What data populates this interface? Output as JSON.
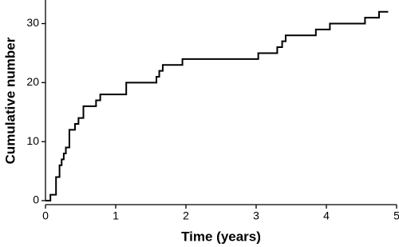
{
  "chart_data": {
    "type": "step",
    "xlabel": "Time (years)",
    "ylabel": "Cumulative number",
    "x": [
      0,
      0.07,
      0.15,
      0.2,
      0.23,
      0.26,
      0.29,
      0.34,
      0.42,
      0.47,
      0.54,
      0.72,
      0.78,
      1.15,
      1.58,
      1.62,
      1.67,
      1.95,
      3.03,
      3.3,
      3.37,
      3.42,
      3.85,
      4.05,
      4.55,
      4.75,
      4.88
    ],
    "values": [
      0,
      1,
      4,
      6,
      7,
      8,
      9,
      12,
      13,
      14,
      16,
      17,
      18,
      20,
      21,
      22,
      23,
      24,
      25,
      26,
      27,
      28,
      29,
      30,
      31,
      32,
      32
    ],
    "color": "#000000",
    "xlim": [
      0,
      5
    ],
    "xticks": [
      0,
      1,
      2,
      3,
      4,
      5
    ],
    "ylim": [
      0,
      34
    ],
    "yticks": [
      0,
      10,
      20,
      30
    ]
  }
}
